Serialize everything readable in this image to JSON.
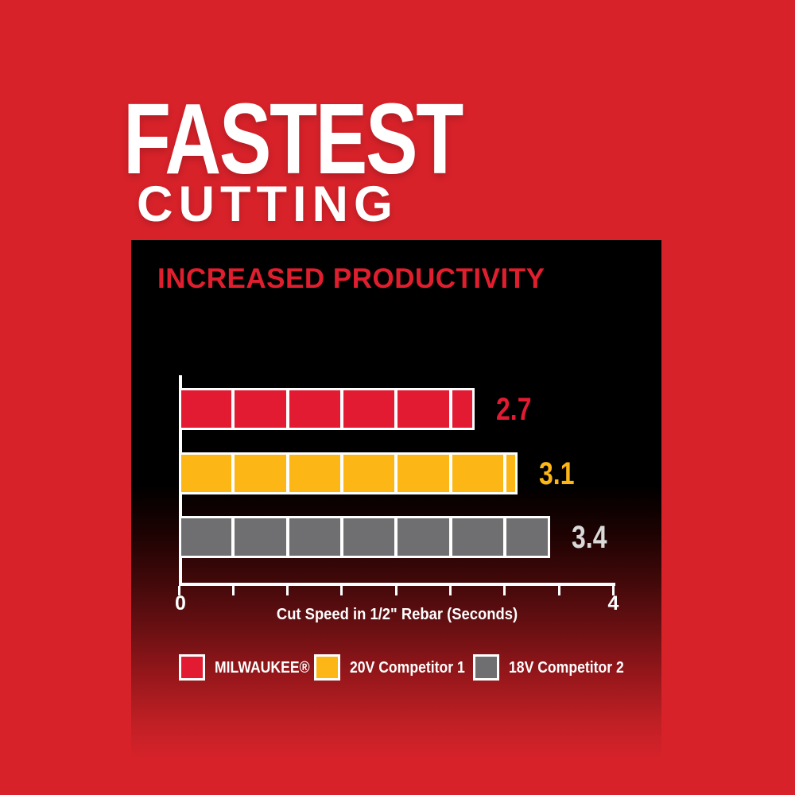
{
  "page": {
    "title_line1": "FASTEST",
    "title_line2": "CUTTING"
  },
  "panel": {
    "heading": "INCREASED PRODUCTIVITY"
  },
  "colors": {
    "background": "#d8222a",
    "panel_top": "#000000",
    "title_text": "#ffffff",
    "heading_text": "#e01f2e",
    "axis": "#ffffff",
    "legend_text": "#ffffff",
    "milwaukee_red": "#e21b33",
    "competitor_yellow": "#fcb615",
    "competitor_gray": "#6f6f71"
  },
  "chart_data": {
    "type": "bar",
    "orientation": "horizontal",
    "title": "INCREASED PRODUCTIVITY",
    "xlabel": "Cut Speed in 1/2\" Rebar (Seconds)",
    "xlim": [
      0,
      4
    ],
    "tick_step": 0.5,
    "segment_unit": 0.5,
    "x_tick_labels": {
      "left": "0",
      "right": "4"
    },
    "grid": false,
    "legend_position": "bottom",
    "categories": [
      "MILWAUKEE®",
      "20V Competitor 1",
      "18V Competitor 2"
    ],
    "series": [
      {
        "name": "MILWAUKEE®",
        "value": 2.7,
        "label": "2.7",
        "color": "#e21b33",
        "label_color": "#e21b33"
      },
      {
        "name": "20V Competitor 1",
        "value": 3.1,
        "label": "3.1",
        "color": "#fcb615",
        "label_color": "#fcb615"
      },
      {
        "name": "18V Competitor 2",
        "value": 3.4,
        "label": "3.4",
        "color": "#6f6f71",
        "label_color": "#d9d9d9"
      }
    ]
  }
}
